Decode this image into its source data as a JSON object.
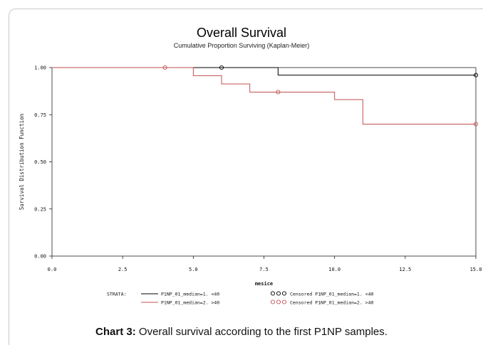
{
  "chart_data": {
    "type": "line",
    "title": "Overall Survival",
    "subtitle": "Cumulative Proportion Surviving (Kaplan-Meier)",
    "xlabel": "mesice",
    "ylabel": "Survival Distribution Function",
    "xlim": [
      0,
      15
    ],
    "ylim": [
      0,
      1
    ],
    "xticks": [
      "0.0",
      "2.5",
      "5.0",
      "7.5",
      "10.0",
      "12.5",
      "15.0"
    ],
    "yticks": [
      "0.00",
      "0.25",
      "0.50",
      "0.75",
      "1.00"
    ],
    "step": true,
    "grid": false,
    "series": [
      {
        "name": "P1NP_01_median=1. <40",
        "color": "#000000",
        "x": [
          0,
          8,
          15
        ],
        "y": [
          1.0,
          0.96,
          0.96
        ],
        "censored": [
          [
            6,
            1.0
          ],
          [
            15,
            0.96
          ]
        ]
      },
      {
        "name": "P1NP_01_median=2. >40",
        "color": "#c0504d",
        "x": [
          0,
          5,
          6,
          7,
          10,
          11,
          15
        ],
        "y": [
          1.0,
          0.957,
          0.913,
          0.87,
          0.83,
          0.7,
          0.7
        ],
        "censored": [
          [
            4,
            1.0
          ],
          [
            8,
            0.87
          ],
          [
            15,
            0.7
          ]
        ]
      }
    ],
    "legend": {
      "placement": "bottom",
      "strata_label": "STRATA:",
      "censored_prefix": "Censored"
    }
  },
  "caption": {
    "label": "Chart 3:",
    "text": " Overall survival according to the first P1NP samples."
  }
}
